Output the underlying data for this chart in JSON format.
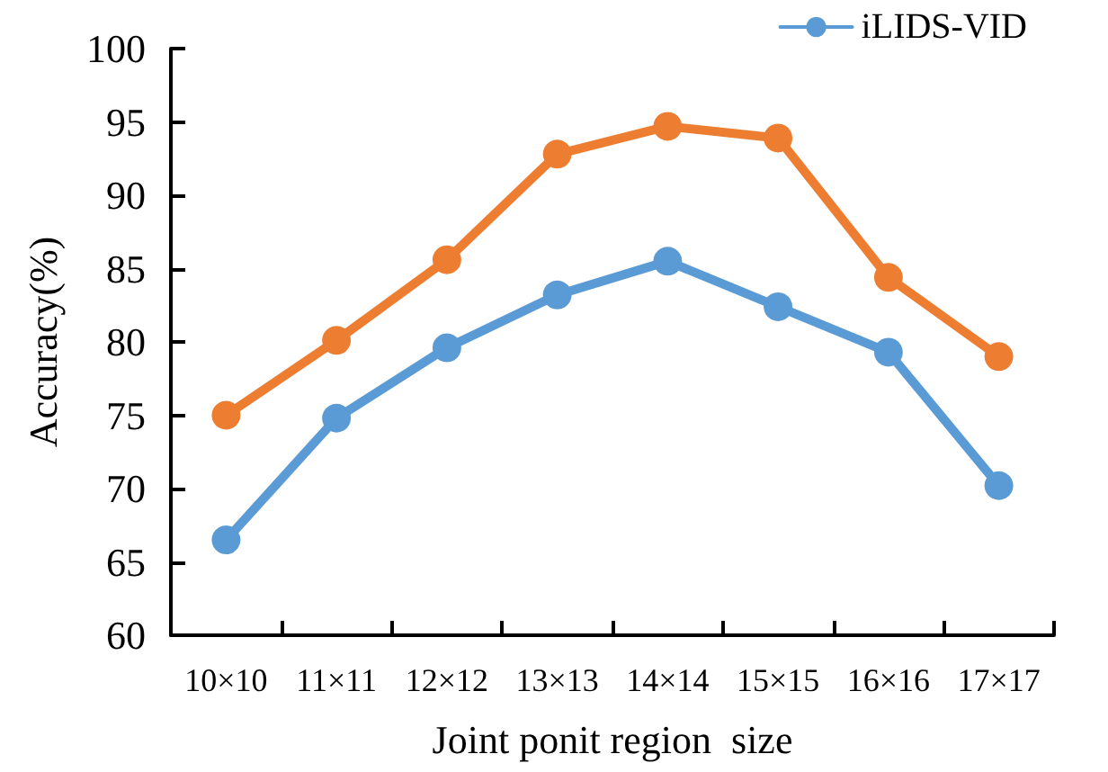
{
  "chart_data": {
    "type": "line",
    "xlabel": "Joint ponit region  size",
    "ylabel": "Accuracy(%)",
    "categories": [
      "10×10",
      "11×11",
      "12×12",
      "13×13",
      "14×14",
      "15×15",
      "16×16",
      "17×17"
    ],
    "series": [
      {
        "name": "iLIDS-VID",
        "color": "#5b9bd5",
        "values": [
          66.5,
          74.8,
          79.6,
          83.2,
          85.5,
          82.4,
          79.3,
          70.2
        ]
      },
      {
        "color": "#ed7d31",
        "values": [
          75.0,
          80.1,
          85.6,
          92.8,
          94.7,
          93.9,
          84.4,
          79.0
        ]
      }
    ],
    "ylim": [
      60,
      100
    ],
    "yticks": [
      60,
      65,
      70,
      75,
      80,
      85,
      90,
      95,
      100
    ],
    "grid": false,
    "legend": "top right",
    "marker": "circle",
    "line_style": "solid"
  }
}
